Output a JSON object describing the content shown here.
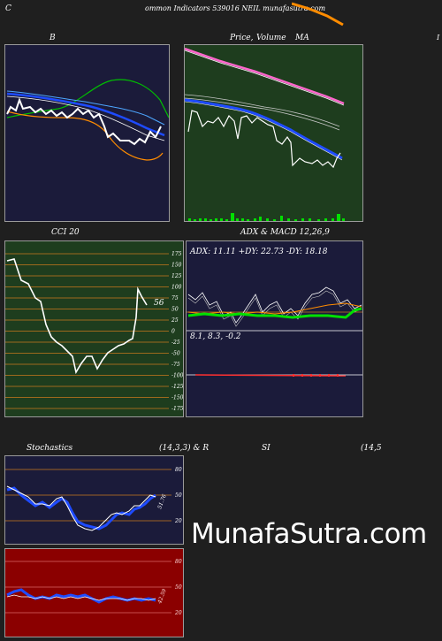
{
  "header": {
    "c_letter": "C",
    "title": "ommon Indicators 539016 NEIL munafasutra.com"
  },
  "panels": {
    "b": {
      "label": "B"
    },
    "price": {
      "label_price": "Price,",
      "label_overlap": "Volume",
      "label_ma": "MA"
    },
    "cci": {
      "label": "CCI 20",
      "value": "56",
      "ticks": [
        "175",
        "150",
        "125",
        "100",
        "75",
        "50",
        "25",
        "0",
        "-25",
        "-50",
        "-75",
        "-100",
        "-125",
        "-150",
        "-175"
      ]
    },
    "adx": {
      "label": "ADX  & MACD 12,26,9",
      "adx_text": "ADX: 11.11 +DY: 22.73 -DY: 18.18",
      "macd_text": "8.1,  8.3,  -0.2"
    },
    "stoch": {
      "label_left": "Stochastics",
      "label_mid": "(14,3,3) & R",
      "label_rsi": "SI",
      "label_right": "(14,5",
      "ticks": [
        "80",
        "50",
        "20"
      ],
      "value": "51.76"
    },
    "rsi": {
      "ticks": [
        "80",
        "50",
        "20"
      ],
      "value": "42.59"
    }
  },
  "brand": "MunafaSutra.com",
  "colors": {
    "page_bg": "#1f1f1f",
    "navy_bg": "#1b1b3a",
    "green_bg": "#1e3d1e",
    "red_bg": "#8b0000",
    "orange": "#ff8c00",
    "blue": "#1e4bff",
    "bright_green": "#00e000",
    "grid_orange": "#c8781e"
  }
}
